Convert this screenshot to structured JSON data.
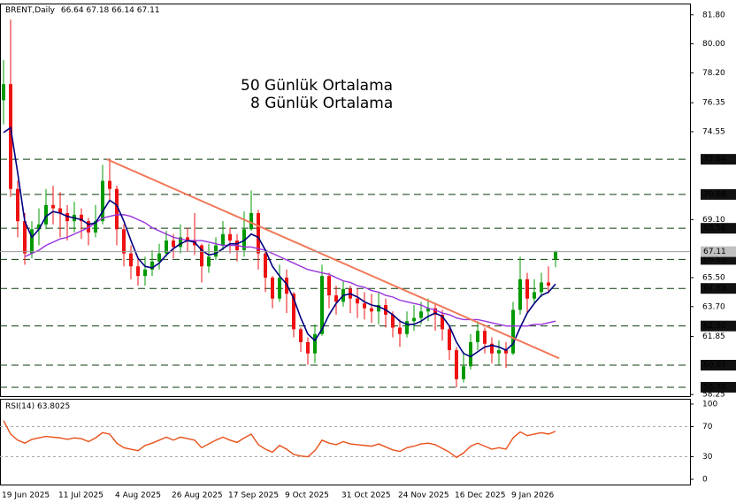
{
  "chart_data": {
    "type": "candlestick",
    "symbol": "BRENT,Daily",
    "categories": [
      "19 Jun 2025",
      null,
      null,
      null,
      null,
      null,
      null,
      null,
      "11 Jul 2025",
      null,
      null,
      null,
      null,
      null,
      null,
      null,
      "4 Aug 2025",
      null,
      null,
      null,
      null,
      null,
      null,
      null,
      "26 Aug 2025",
      null,
      null,
      null,
      null,
      null,
      null,
      null,
      "17 Sep 2025",
      null,
      null,
      null,
      null,
      null,
      null,
      null,
      "9 Oct 2025",
      null,
      null,
      null,
      null,
      null,
      null,
      null,
      "31 Oct 2025",
      null,
      null,
      null,
      null,
      null,
      null,
      null,
      "24 Nov 2025",
      null,
      null,
      null,
      null,
      null,
      null,
      null,
      "16 Dec 2025",
      null,
      null,
      null,
      null,
      null,
      null,
      null,
      "9 Jan 2026",
      null,
      null,
      null,
      null,
      null,
      null
    ],
    "ohlc": {
      "up_color": "#009900",
      "down_color": "#ee1111",
      "open": [
        76.5,
        77.5,
        71,
        69,
        67,
        68.5,
        68.8,
        70,
        69.8,
        69.5,
        69,
        69.4,
        69,
        68.3,
        69,
        71.5,
        71,
        68.5,
        67,
        66.2,
        65.6,
        66,
        66.5,
        67,
        67.8,
        67.4,
        68,
        67.8,
        67.5,
        66.2,
        66.8,
        67.5,
        68.2,
        67.8,
        67.2,
        68.5,
        69.5,
        67,
        65.5,
        64.2,
        65.5,
        64.5,
        62.3,
        61.5,
        60.8,
        62,
        65.6,
        64.4,
        64,
        64.8,
        64.2,
        63.9,
        63.6,
        63.4,
        63.8,
        63.2,
        62.4,
        62,
        62.8,
        63,
        63.4,
        63.6,
        63.2,
        62.3,
        61,
        59.2,
        60,
        61.5,
        62.2,
        61.4,
        60.8,
        61,
        60.8,
        63.5,
        65.4,
        64.2,
        64.6,
        65.2,
        66.64
      ],
      "high": [
        79,
        81.5,
        71.5,
        69.5,
        69,
        69.8,
        71,
        71.2,
        70.8,
        70,
        70.2,
        69.8,
        69.2,
        70,
        72.5,
        72.84,
        71.2,
        68.8,
        67.5,
        66.8,
        66.8,
        67.2,
        67.6,
        68.4,
        68.2,
        68.8,
        68.6,
        69.5,
        67.6,
        67.6,
        68,
        69,
        68.6,
        68.2,
        69.6,
        70.9,
        69.7,
        67.2,
        65.6,
        66.3,
        66,
        64.6,
        62.4,
        61.8,
        62.6,
        66.3,
        65.8,
        65,
        65.3,
        65,
        64.8,
        64.6,
        64.5,
        64.6,
        64.2,
        63.4,
        62.9,
        63.4,
        63.8,
        64,
        64.2,
        63.9,
        63.5,
        62.5,
        61.2,
        60.9,
        62,
        62.8,
        62.4,
        61.8,
        61.6,
        61.5,
        64,
        66.8,
        65.8,
        65.4,
        65.8,
        66.2,
        67.18
      ],
      "low": [
        75,
        70.5,
        68,
        66.3,
        66.7,
        67.5,
        68.5,
        68.8,
        68,
        67.8,
        68.3,
        67.9,
        67.5,
        68,
        68.8,
        70.2,
        67.5,
        66.2,
        65.4,
        65,
        65,
        65.6,
        66,
        66.8,
        66.7,
        67,
        67.1,
        66.9,
        65.2,
        65.8,
        66.6,
        67.2,
        67,
        66.5,
        66.8,
        68.4,
        66,
        64.6,
        63.6,
        64,
        63.3,
        61.8,
        60.9,
        60.1,
        60.2,
        61.9,
        63.6,
        63.2,
        63.7,
        63.3,
        63,
        62.9,
        62.7,
        62.6,
        62.4,
        61.8,
        61.2,
        61.8,
        62.2,
        62.6,
        62.8,
        62.2,
        61.6,
        60.4,
        58.7,
        59,
        59.8,
        61,
        60.8,
        60.2,
        60.1,
        59.9,
        60.7,
        63.2,
        63.3,
        63.9,
        64.3,
        64.5,
        66.14
      ],
      "close": [
        77.5,
        71,
        69,
        67,
        68.5,
        68.8,
        70,
        69.8,
        69.5,
        69,
        69.4,
        69,
        68.3,
        69,
        71.5,
        71,
        68.5,
        67,
        66.2,
        65.6,
        66,
        66.5,
        67,
        67.8,
        67.4,
        68,
        67.8,
        67.5,
        66.2,
        66.8,
        67.5,
        68.2,
        67.8,
        67.2,
        68.5,
        69.5,
        67,
        65.5,
        64.2,
        65.5,
        64.5,
        62.3,
        61.5,
        60.8,
        62,
        65.6,
        64.4,
        64,
        64.8,
        64.2,
        63.9,
        63.6,
        63.4,
        63.8,
        63.2,
        62.4,
        62,
        62.8,
        63,
        63.4,
        63.6,
        63.2,
        62.3,
        61,
        59.2,
        60,
        61.5,
        62.2,
        61.4,
        60.8,
        61,
        60.8,
        63.5,
        65.4,
        64.2,
        64.6,
        65.2,
        65,
        67.11
      ]
    },
    "series": [
      {
        "name": "50 Günlük Ortalama",
        "color": "#9933dd",
        "values": [
          null,
          null,
          null,
          66.8,
          67,
          67.2,
          67.5,
          67.7,
          67.9,
          68,
          68.2,
          68.4,
          68.6,
          68.9,
          69.2,
          69.3,
          69.4,
          69.4,
          69.3,
          69.1,
          68.9,
          68.6,
          68.4,
          68.2,
          68,
          67.9,
          67.8,
          67.8,
          67.8,
          67.7,
          67.6,
          67.5,
          67.5,
          67.5,
          67.4,
          67.4,
          67.3,
          67.2,
          67,
          66.8,
          66.6,
          66.4,
          66.2,
          66,
          65.9,
          65.8,
          65.7,
          65.5,
          65.3,
          65.2,
          65,
          64.9,
          64.7,
          64.6,
          64.4,
          64.3,
          64.1,
          64,
          63.9,
          63.8,
          63.6,
          63.5,
          63.3,
          63.2,
          63,
          62.9,
          62.9,
          62.9,
          62.8,
          62.7,
          62.6,
          62.5,
          62.5,
          62.5,
          62.5,
          62.6,
          62.6,
          62.7,
          62.8
        ]
      },
      {
        "name": "8 Günlük Ortalama",
        "color": "#000080",
        "values": [
          74.5,
          74.8,
          72,
          69,
          68,
          68.5,
          69.3,
          69.6,
          69.5,
          69.3,
          69.2,
          69.1,
          68.8,
          68.9,
          69.6,
          70.3,
          70,
          69,
          67.8,
          66.7,
          66.2,
          66.1,
          66.4,
          66.9,
          67.3,
          67.6,
          67.8,
          67.7,
          67.2,
          66.9,
          67,
          67.3,
          67.6,
          67.6,
          67.8,
          68.2,
          68,
          67.2,
          66.2,
          65.6,
          65.1,
          64.2,
          63,
          62,
          61.6,
          62.3,
          63.2,
          63.9,
          64.4,
          64.5,
          64.3,
          64,
          63.8,
          63.7,
          63.5,
          63.2,
          62.8,
          62.6,
          62.6,
          62.8,
          63.1,
          63.3,
          63.1,
          62.5,
          61.5,
          60.8,
          60.6,
          60.9,
          61.2,
          61.3,
          61.2,
          61,
          61.4,
          62.4,
          63.3,
          63.9,
          64.4,
          64.6,
          65.1
        ]
      }
    ],
    "trendline": {
      "color": "#f07a5a",
      "x": [
        14.6,
        78.5
      ],
      "values": [
        72.84,
        60.5
      ]
    },
    "levels": [
      72.84,
      70.66,
      68.56,
      66.63,
      64.83,
      {
        "value": 62.5,
        "label": "62.50"
      },
      60.07,
      {
        "value": 58.7,
        "label": "58.70"
      }
    ],
    "ylim": [
      58.15,
      82.5
    ],
    "yticks": [
      {
        "value": 81.8,
        "label": "81.80"
      },
      {
        "value": 80,
        "label": "80.00"
      },
      {
        "value": 78.2,
        "label": "78.20"
      },
      76.35,
      74.55,
      {
        "value": 69.1,
        "label": "69.10"
      },
      {
        "value": 65.5,
        "label": "65.50"
      },
      {
        "value": 63.7,
        "label": "63.70"
      },
      61.85,
      58.25
    ],
    "rsi": {
      "label": "RSI(14)",
      "color": "#e8501a",
      "values": [
        78,
        60,
        52,
        48,
        53,
        55,
        57,
        56,
        55,
        53,
        55,
        54,
        50,
        55,
        62,
        60,
        48,
        42,
        40,
        38,
        45,
        48,
        52,
        56,
        52,
        56,
        54,
        52,
        42,
        47,
        52,
        56,
        52,
        49,
        55,
        60,
        46,
        40,
        36,
        45,
        40,
        33,
        31,
        30,
        38,
        52,
        48,
        46,
        50,
        47,
        46,
        45,
        44,
        47,
        43,
        39,
        37,
        42,
        44,
        47,
        48,
        46,
        41,
        36,
        29,
        35,
        44,
        48,
        44,
        40,
        42,
        40,
        55,
        63,
        58,
        60,
        62,
        60,
        63.8025
      ],
      "ylim": [
        -7,
        107
      ],
      "yticks": [
        100,
        70,
        30,
        0
      ],
      "levels": [
        70,
        30
      ]
    }
  }
}
